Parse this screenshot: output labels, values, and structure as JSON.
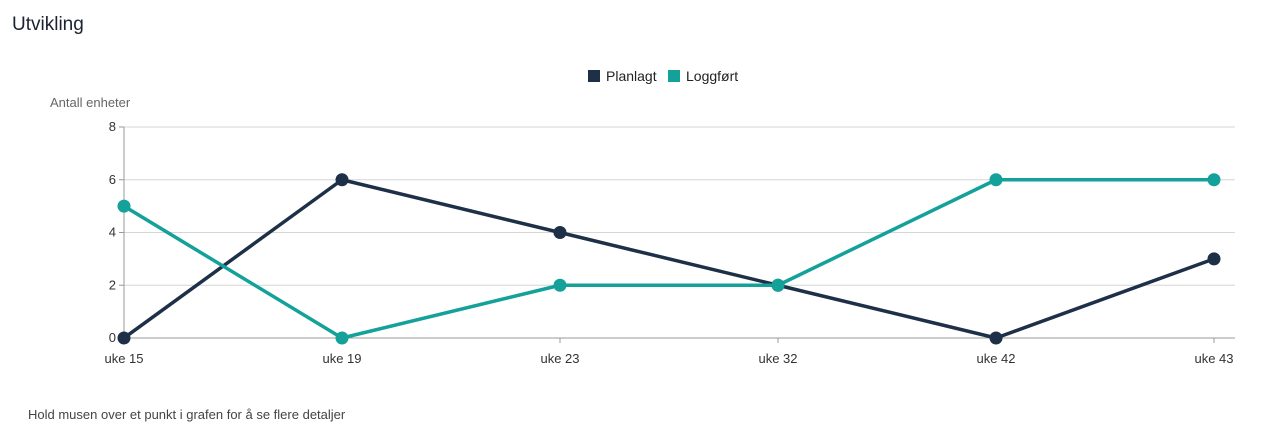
{
  "title": "Utvikling",
  "hint": "Hold musen over et punkt i grafen for å se flere detaljer",
  "colors": {
    "planlagt": "#1e3048",
    "loggfort": "#13a19a",
    "grid": "#d6d6d6",
    "axis": "#999999"
  },
  "chart_data": {
    "type": "line",
    "ylabel": "Antall enheter",
    "xlabel": "",
    "categories": [
      "uke 15",
      "uke 19",
      "uke 23",
      "uke 32",
      "uke 42",
      "uke 43"
    ],
    "ylim": [
      0,
      8
    ],
    "yticks": [
      0,
      2,
      4,
      6,
      8
    ],
    "grid": true,
    "legend_position": "top-center",
    "series": [
      {
        "name": "Planlagt",
        "values": [
          0,
          6,
          4,
          2,
          0,
          3
        ]
      },
      {
        "name": "Loggført",
        "values": [
          5,
          0,
          2,
          2,
          6,
          6
        ]
      }
    ]
  }
}
